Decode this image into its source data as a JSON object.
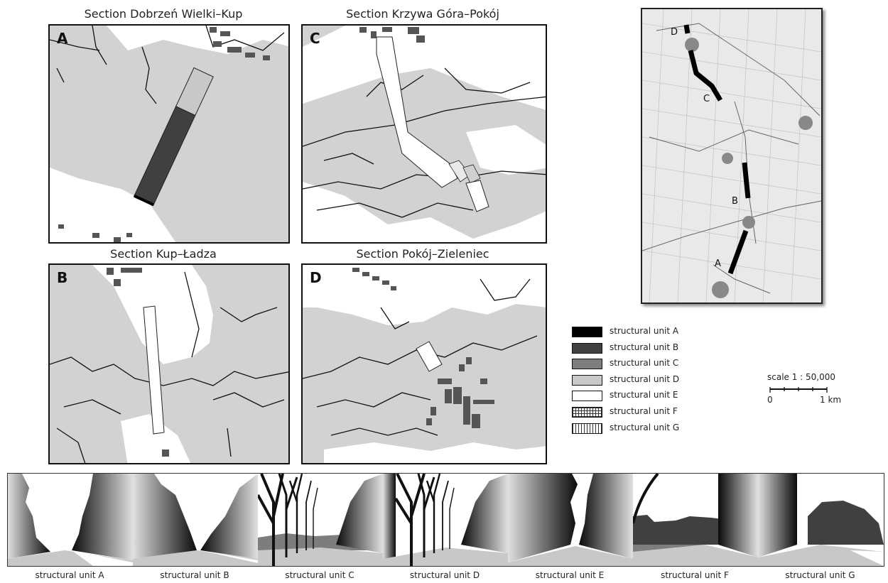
{
  "sections": [
    {
      "letter": "A",
      "title": "Section Dobrzeń Wielki–Kup"
    },
    {
      "letter": "C",
      "title": "Section Krzywa Góra–Pokój"
    },
    {
      "letter": "B",
      "title": "Section Kup–Ładza"
    },
    {
      "letter": "D",
      "title": "Section Pokój–Zieleniec"
    }
  ],
  "overview_labels": [
    "D",
    "C",
    "B",
    "A"
  ],
  "legend": [
    {
      "label": "structural unit A",
      "color": "#000000",
      "pattern": "solid"
    },
    {
      "label": "structural unit B",
      "color": "#404040",
      "pattern": "solid"
    },
    {
      "label": "structural unit C",
      "color": "#7d7d7d",
      "pattern": "solid"
    },
    {
      "label": "structural unit D",
      "color": "#c8c8c8",
      "pattern": "solid"
    },
    {
      "label": "structural unit E",
      "color": "#ffffff",
      "pattern": "solid"
    },
    {
      "label": "structural unit F",
      "color": "#ffffff",
      "pattern": "grid"
    },
    {
      "label": "structural unit G",
      "color": "#ffffff",
      "pattern": "vertical-lines"
    }
  ],
  "scale": {
    "label": "scale  1 : 50,000",
    "start": "0",
    "end": "1 km"
  },
  "strip_labels": [
    "structural unit A",
    "structural unit B",
    "structural unit C",
    "structural unit D",
    "structural unit E",
    "structural unit F",
    "structural unit G"
  ]
}
